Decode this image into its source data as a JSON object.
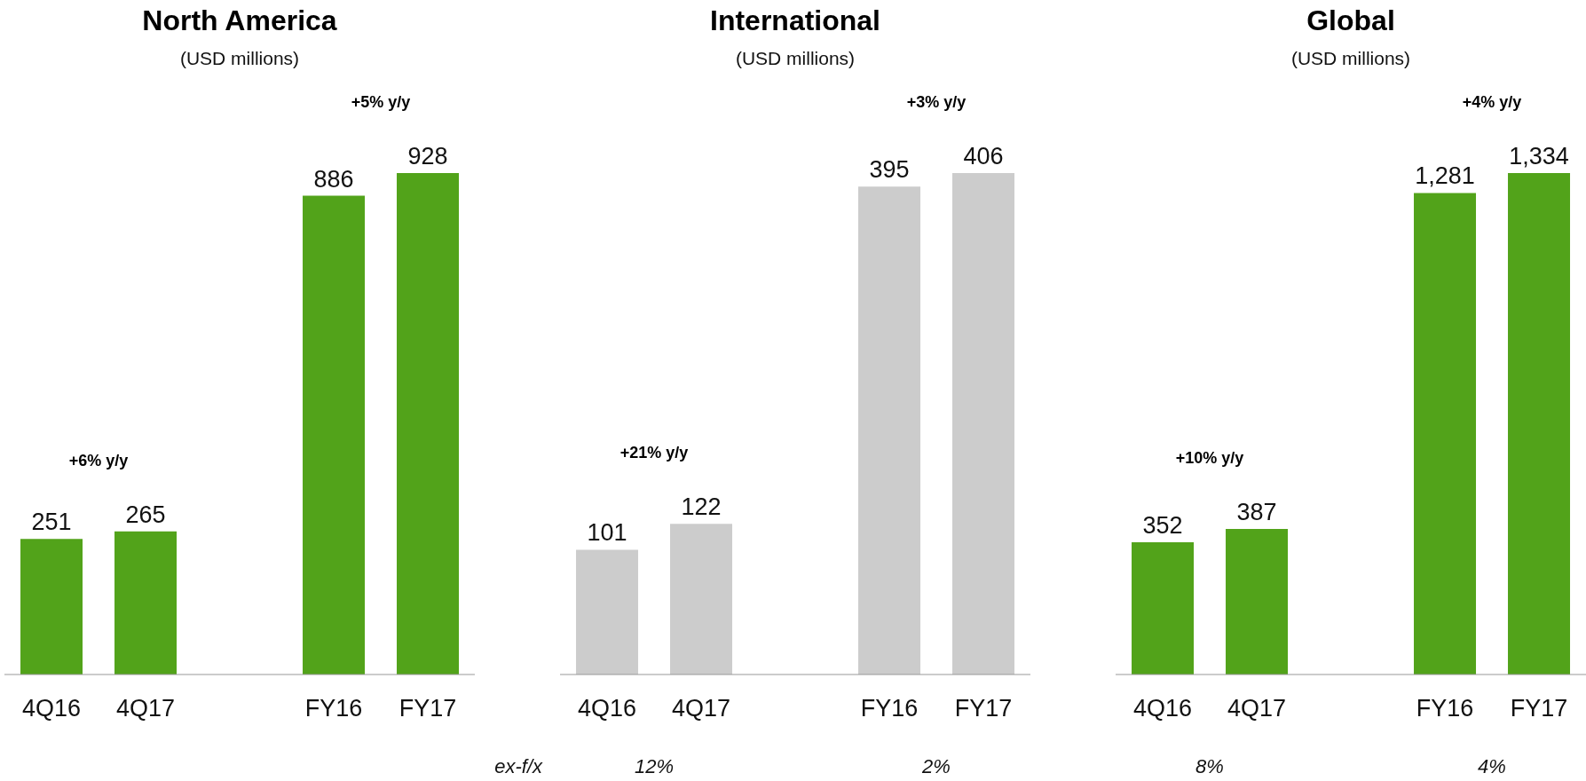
{
  "chart_data": [
    {
      "type": "bar",
      "title": "North America",
      "subtitle": "(USD millions)",
      "categories": [
        "4Q16",
        "4Q17",
        null,
        "FY16",
        "FY17"
      ],
      "values": [
        251,
        265,
        null,
        886,
        928
      ],
      "color": "#52a31a",
      "data_labels": true,
      "annotations": [
        "+6% y/y",
        "+5% y/y"
      ]
    },
    {
      "type": "bar",
      "title": "International",
      "subtitle": "(USD millions)",
      "categories": [
        "4Q16",
        "4Q17",
        null,
        "FY16",
        "FY17"
      ],
      "values": [
        101,
        122,
        null,
        395,
        406
      ],
      "color": "#cccccc",
      "data_labels": true,
      "annotations": [
        "+21% y/y",
        "+3% y/y",
        "ex-f/x",
        "12%",
        "2%"
      ]
    },
    {
      "type": "bar",
      "title": "Global",
      "subtitle": "(USD millions)",
      "categories": [
        "4Q16",
        "4Q17",
        null,
        "FY16",
        "FY17"
      ],
      "values": [
        352,
        387,
        null,
        1281,
        1334
      ],
      "value_labels": [
        "352",
        "387",
        null,
        "1,281",
        "1,334"
      ],
      "color": "#52a31a",
      "annotations": [
        "+10% y/y",
        "+4% y/y",
        "8%",
        "4%"
      ]
    }
  ]
}
